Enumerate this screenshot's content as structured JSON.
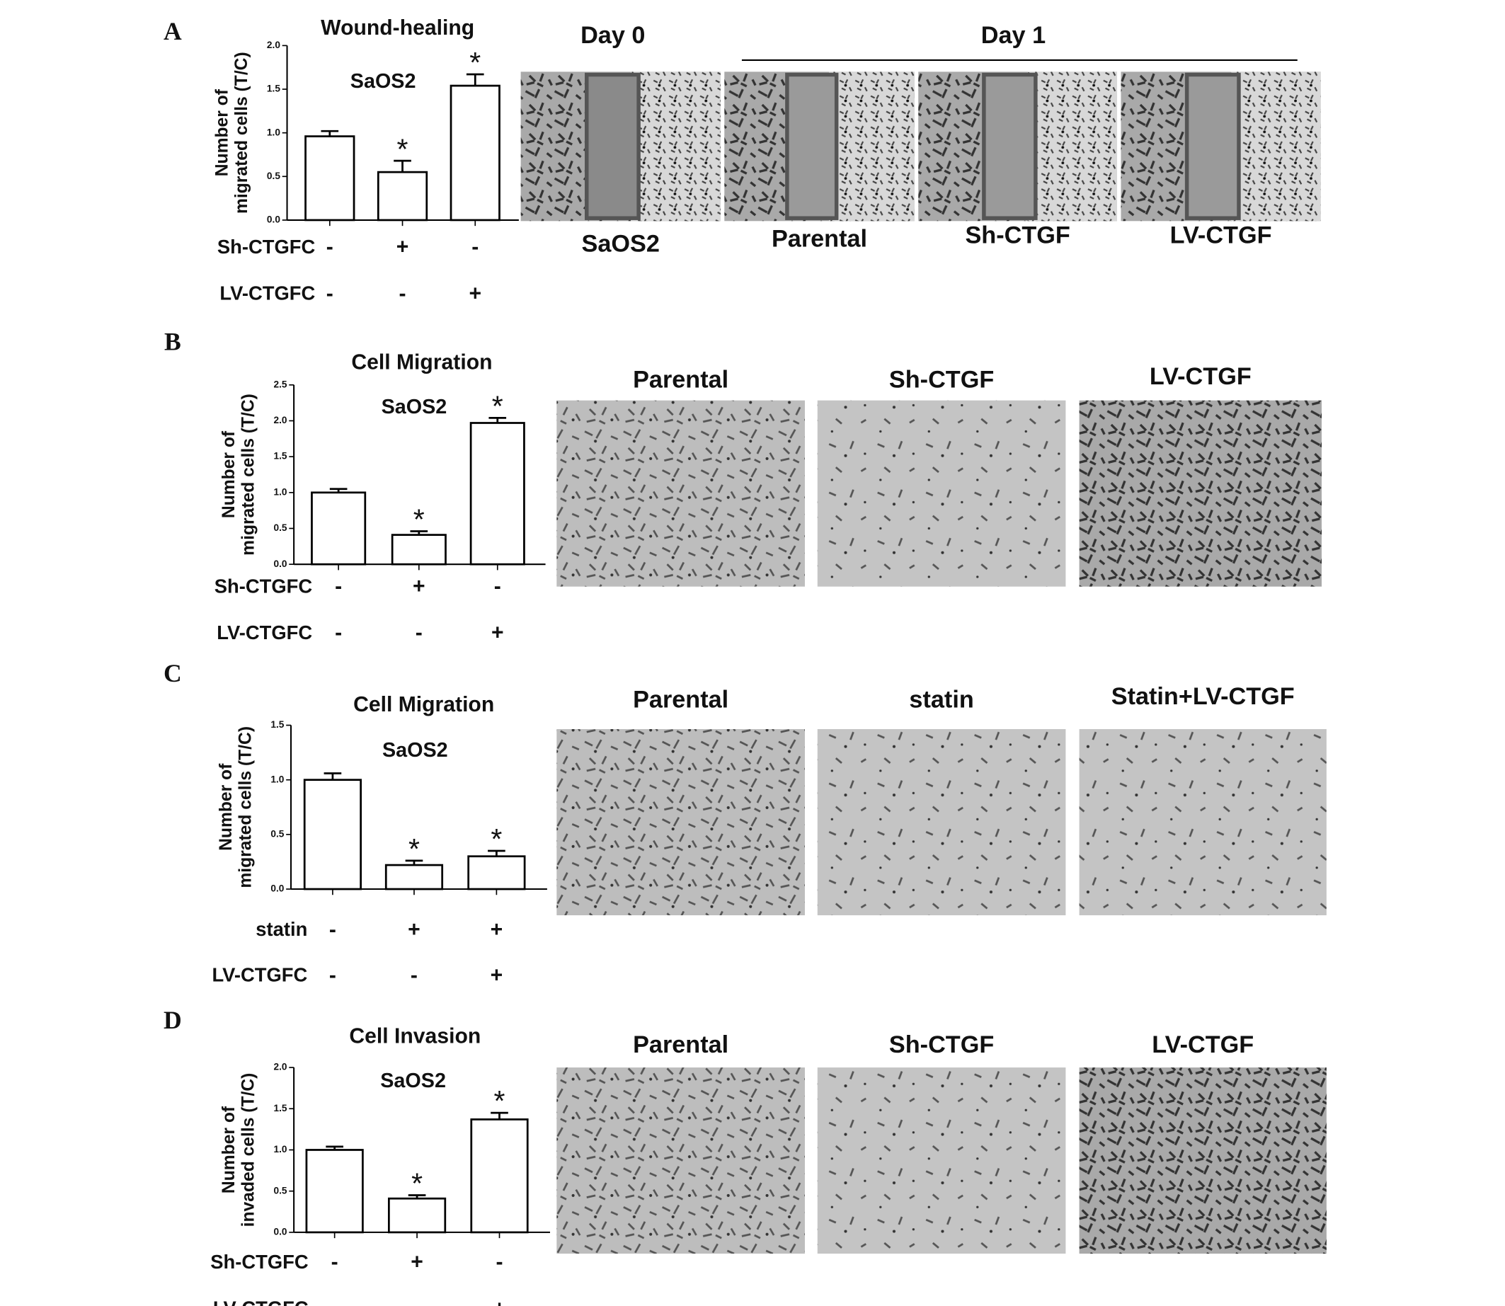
{
  "chart_data": [
    {
      "type": "bar",
      "title": "Wound-healing",
      "subtitle": "SaOS2",
      "ylabel": [
        "Number of",
        "migrated cells (T/C)"
      ],
      "categories": [
        null,
        null,
        null
      ],
      "values": [
        0.96,
        0.55,
        1.54
      ],
      "errors": [
        0.06,
        0.13,
        0.13
      ],
      "annotations": [
        null,
        "*",
        "*"
      ],
      "color": "#ffffff",
      "ylim": [
        0,
        2
      ],
      "yticks": [
        {
          "value": 0,
          "label": "0.0"
        },
        {
          "value": 0.5,
          "label": "0.5"
        },
        {
          "value": 1,
          "label": "1.0"
        },
        {
          "value": 1.5,
          "label": "1.5"
        },
        {
          "value": 2,
          "label": "2.0"
        }
      ],
      "conditions": [
        {
          "name": "Sh-CTGFC",
          "signs": [
            "-",
            "+",
            "-"
          ]
        },
        {
          "name": "LV-CTGFC",
          "signs": [
            "-",
            "-",
            "+"
          ]
        }
      ]
    },
    {
      "type": "bar",
      "title": "Cell Migration",
      "subtitle": "SaOS2",
      "ylabel": [
        "Number of",
        "migrated cells (T/C)"
      ],
      "categories": [
        null,
        null,
        null
      ],
      "values": [
        1.0,
        0.41,
        1.97
      ],
      "errors": [
        0.05,
        0.05,
        0.07
      ],
      "annotations": [
        null,
        "*",
        "*"
      ],
      "color": "#ffffff",
      "ylim": [
        0,
        2.5
      ],
      "yticks": [
        {
          "value": 0,
          "label": "0.0"
        },
        {
          "value": 0.5,
          "label": "0.5"
        },
        {
          "value": 1,
          "label": "1.0"
        },
        {
          "value": 1.5,
          "label": "1.5"
        },
        {
          "value": 2,
          "label": "2.0"
        },
        {
          "value": 2.5,
          "label": "2.5"
        }
      ],
      "conditions": [
        {
          "name": "Sh-CTGFC",
          "signs": [
            "-",
            "+",
            "-"
          ]
        },
        {
          "name": "LV-CTGFC",
          "signs": [
            "-",
            "-",
            "+"
          ]
        }
      ]
    },
    {
      "type": "bar",
      "title": "Cell Migration",
      "subtitle": "SaOS2",
      "ylabel": [
        "Number of",
        "migrated cells (T/C)"
      ],
      "categories": [
        null,
        null,
        null
      ],
      "values": [
        1.0,
        0.22,
        0.3
      ],
      "errors": [
        0.06,
        0.04,
        0.05
      ],
      "annotations": [
        null,
        "*",
        "*"
      ],
      "color": "#ffffff",
      "ylim": [
        0,
        1.5
      ],
      "yticks": [
        {
          "value": 0,
          "label": "0.0"
        },
        {
          "value": 0.5,
          "label": "0.5"
        },
        {
          "value": 1,
          "label": "1.0"
        },
        {
          "value": 1.5,
          "label": "1.5"
        }
      ],
      "conditions": [
        {
          "name": "statin",
          "signs": [
            "-",
            "+",
            "+"
          ]
        },
        {
          "name": "LV-CTGFC",
          "signs": [
            "-",
            "-",
            "+"
          ]
        }
      ]
    },
    {
      "type": "bar",
      "title": "Cell Invasion",
      "subtitle": "SaOS2",
      "ylabel": [
        "Number of",
        "invaded cells (T/C)"
      ],
      "categories": [
        null,
        null,
        null
      ],
      "values": [
        1.0,
        0.41,
        1.37
      ],
      "errors": [
        0.04,
        0.04,
        0.08
      ],
      "annotations": [
        null,
        "*",
        "*"
      ],
      "color": "#ffffff",
      "ylim": [
        0,
        2
      ],
      "yticks": [
        {
          "value": 0,
          "label": "0.0"
        },
        {
          "value": 0.5,
          "label": "0.5"
        },
        {
          "value": 1,
          "label": "1.0"
        },
        {
          "value": 1.5,
          "label": "1.5"
        },
        {
          "value": 2,
          "label": "2.0"
        }
      ],
      "conditions": [
        {
          "name": "Sh-CTGFC",
          "signs": [
            "-",
            "+",
            "-"
          ]
        },
        {
          "name": "LV-CTGFC",
          "signs": [
            "-",
            "-",
            "+"
          ]
        }
      ]
    }
  ],
  "figure": {
    "panels": [
      {
        "letter": "A",
        "headers": [
          "Day 0",
          "Day 1"
        ],
        "images": [
          "SaOS2",
          "Parental",
          "Sh-CTGF",
          "LV-CTGF"
        ]
      },
      {
        "letter": "B",
        "images": [
          "Parental",
          "Sh-CTGF",
          "LV-CTGF"
        ]
      },
      {
        "letter": "C",
        "images": [
          "Parental",
          "statin",
          "Statin+LV-CTGF"
        ]
      },
      {
        "letter": "D",
        "images": [
          "Parental",
          "Sh-CTGF",
          "LV-CTGF"
        ]
      }
    ]
  }
}
